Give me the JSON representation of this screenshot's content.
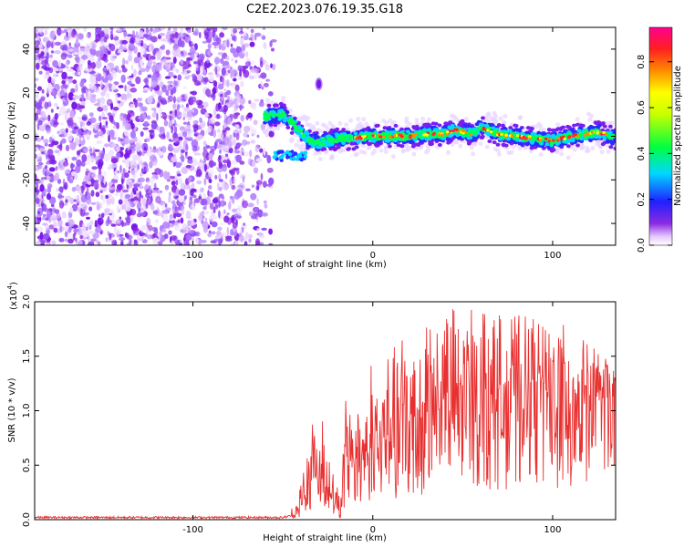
{
  "chart_data": [
    {
      "type": "heatmap",
      "title": "C2E2.2023.076.19.35.G18",
      "xlabel": "Height of straight line (km)",
      "ylabel": "Frequency (Hz)",
      "xlim": [
        -188,
        135
      ],
      "ylim": [
        -50,
        50
      ],
      "x_ticks": [
        -100,
        0,
        100
      ],
      "x_tick_labels": [
        "-100",
        "0",
        "100"
      ],
      "y_ticks": [
        -40,
        -20,
        0,
        20,
        40
      ],
      "y_tick_labels": [
        "-40",
        "-20",
        "0",
        "20",
        "40"
      ],
      "noise_region_x": [
        -188,
        -55
      ],
      "isolated_blob": {
        "x": -30,
        "y": 24
      },
      "ridge": {
        "x": [
          -60,
          -50,
          -45,
          -40,
          -35,
          -30,
          -25,
          -20,
          -10,
          0,
          10,
          20,
          30,
          40,
          45,
          50,
          55,
          60,
          70,
          80,
          90,
          100,
          110,
          120,
          125,
          130,
          135
        ],
        "y": [
          9,
          10,
          6,
          2,
          -2,
          -3,
          -2,
          -1,
          -1,
          0,
          0,
          0,
          1,
          1,
          3,
          2,
          1,
          4,
          1,
          0,
          -1,
          -2,
          0,
          1,
          2,
          1,
          -1
        ]
      },
      "colorbar": {
        "label": "Normalized spectral amplitude",
        "range": [
          0.0,
          0.95
        ],
        "ticks": [
          0.0,
          0.2,
          0.4,
          0.6,
          0.8
        ],
        "tick_labels": [
          "0.0",
          "0.2",
          "0.4",
          "0.6",
          "0.8"
        ]
      }
    },
    {
      "type": "line",
      "xlabel": "Height of straight line (km)",
      "ylabel": "SNR (10 * v/v)",
      "y_multiplier": "(x10",
      "y_multiplier_exp": "4",
      "y_multiplier_close": ")",
      "xlim": [
        -188,
        135
      ],
      "ylim": [
        0,
        2.0
      ],
      "x_ticks": [
        -100,
        0,
        100
      ],
      "x_tick_labels": [
        "-100",
        "0",
        "100"
      ],
      "y_ticks": [
        0.0,
        0.5,
        1.0,
        1.5,
        2.0
      ],
      "y_tick_labels": [
        "0.0",
        "0.5",
        "1.0",
        "1.5",
        "2.0"
      ],
      "color": "#e83030",
      "envelope": {
        "x": [
          -188,
          -50,
          -42,
          -38,
          -35,
          -30,
          -27,
          -22,
          -18,
          -15,
          -12,
          -8,
          -5,
          0,
          10,
          20,
          30,
          40,
          50,
          60,
          70,
          80,
          90,
          100,
          110,
          120,
          130,
          135
        ],
        "mean": [
          0.02,
          0.02,
          0.05,
          0.2,
          0.35,
          0.4,
          0.42,
          0.15,
          0.05,
          0.4,
          0.55,
          0.5,
          0.6,
          0.6,
          0.72,
          0.82,
          0.95,
          1.0,
          1.05,
          1.1,
          1.1,
          1.12,
          1.12,
          1.15,
          1.12,
          1.1,
          1.1,
          1.1
        ],
        "peak": [
          0.03,
          0.03,
          0.15,
          0.95,
          1.0,
          1.02,
          0.95,
          0.45,
          0.2,
          1.2,
          1.25,
          1.05,
          1.35,
          1.45,
          1.55,
          1.75,
          1.95,
          1.95,
          1.95,
          1.95,
          1.9,
          1.9,
          1.85,
          2.0,
          1.7,
          1.65,
          1.5,
          1.4
        ]
      }
    }
  ]
}
